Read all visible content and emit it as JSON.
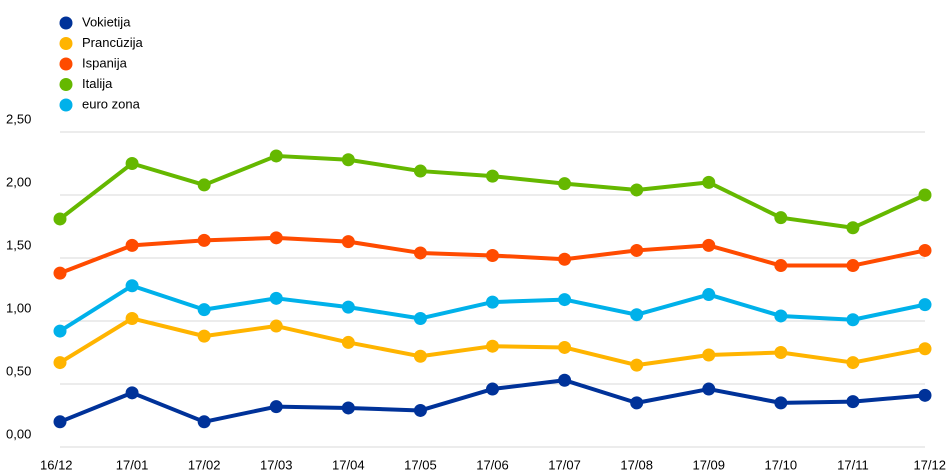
{
  "chart_data": {
    "type": "line",
    "categories": [
      "16/12",
      "17/01",
      "17/02",
      "17/03",
      "17/04",
      "17/05",
      "17/06",
      "17/07",
      "17/08",
      "17/09",
      "17/10",
      "17/11",
      "17/12"
    ],
    "series": [
      {
        "name": "Vokietija",
        "color": "#003299",
        "values": [
          0.2,
          0.43,
          0.2,
          0.32,
          0.31,
          0.29,
          0.46,
          0.53,
          0.35,
          0.46,
          0.35,
          0.36,
          0.41
        ]
      },
      {
        "name": "Prancūzija",
        "color": "#ffb400",
        "values": [
          0.67,
          1.02,
          0.88,
          0.96,
          0.83,
          0.72,
          0.8,
          0.79,
          0.65,
          0.73,
          0.75,
          0.67,
          0.78
        ]
      },
      {
        "name": "Ispanija",
        "color": "#ff4b00",
        "values": [
          1.38,
          1.6,
          1.64,
          1.66,
          1.63,
          1.54,
          1.52,
          1.49,
          1.56,
          1.6,
          1.44,
          1.44,
          1.56
        ]
      },
      {
        "name": "Italija",
        "color": "#65b800",
        "values": [
          1.81,
          2.25,
          2.08,
          2.31,
          2.28,
          2.19,
          2.15,
          2.09,
          2.04,
          2.1,
          1.82,
          1.74,
          2.0
        ]
      },
      {
        "name": "euro zona",
        "color": "#00b1ea",
        "values": [
          0.92,
          1.28,
          1.09,
          1.18,
          1.11,
          1.02,
          1.15,
          1.17,
          1.05,
          1.21,
          1.04,
          1.01,
          1.13
        ]
      }
    ],
    "ylim": [
      0,
      2.5
    ],
    "yticks": [
      {
        "value": 0,
        "label": "0,00"
      },
      {
        "value": 0.5,
        "label": "0,50"
      },
      {
        "value": 1,
        "label": "1,00"
      },
      {
        "value": 1.5,
        "label": "1,50"
      },
      {
        "value": 2,
        "label": "2,00"
      },
      {
        "value": 2.5,
        "label": "2,50"
      }
    ],
    "grid": true,
    "legend": "top-left"
  }
}
